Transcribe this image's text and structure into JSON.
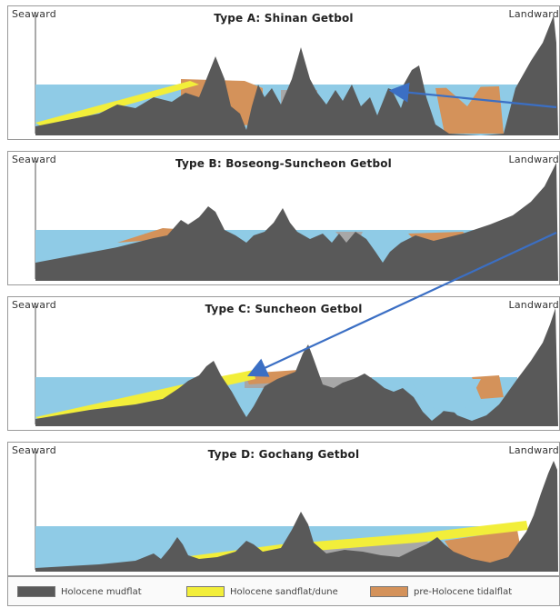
{
  "colors": {
    "mudflat": "#595959",
    "sand": "#f2ee3a",
    "tidalflat": "#d4925a",
    "water": "#8fcbe6",
    "grey": "#a7a7a7",
    "arrow": "#3b6fc4"
  },
  "panels": [
    {
      "seaward": "Seaward",
      "landward": "Landward",
      "title": "Type A: Shinan Getbol"
    },
    {
      "seaward": "Seaward",
      "landward": "Landward",
      "title": "Type B: Boseong-Suncheon Getbol"
    },
    {
      "seaward": "Seaward",
      "landward": "Landward",
      "title": "Type C: Suncheon Getbol"
    },
    {
      "seaward": "Seaward",
      "landward": "Landward",
      "title": "Type D: Gochang Getbol"
    }
  ],
  "legend": [
    {
      "label": "Holocene mudflat",
      "color": "#595959"
    },
    {
      "label": "Holocene sandflat/dune",
      "color": "#f2ee3a"
    },
    {
      "label": "pre-Holocene tidalflat",
      "color": "#d4925a"
    }
  ]
}
